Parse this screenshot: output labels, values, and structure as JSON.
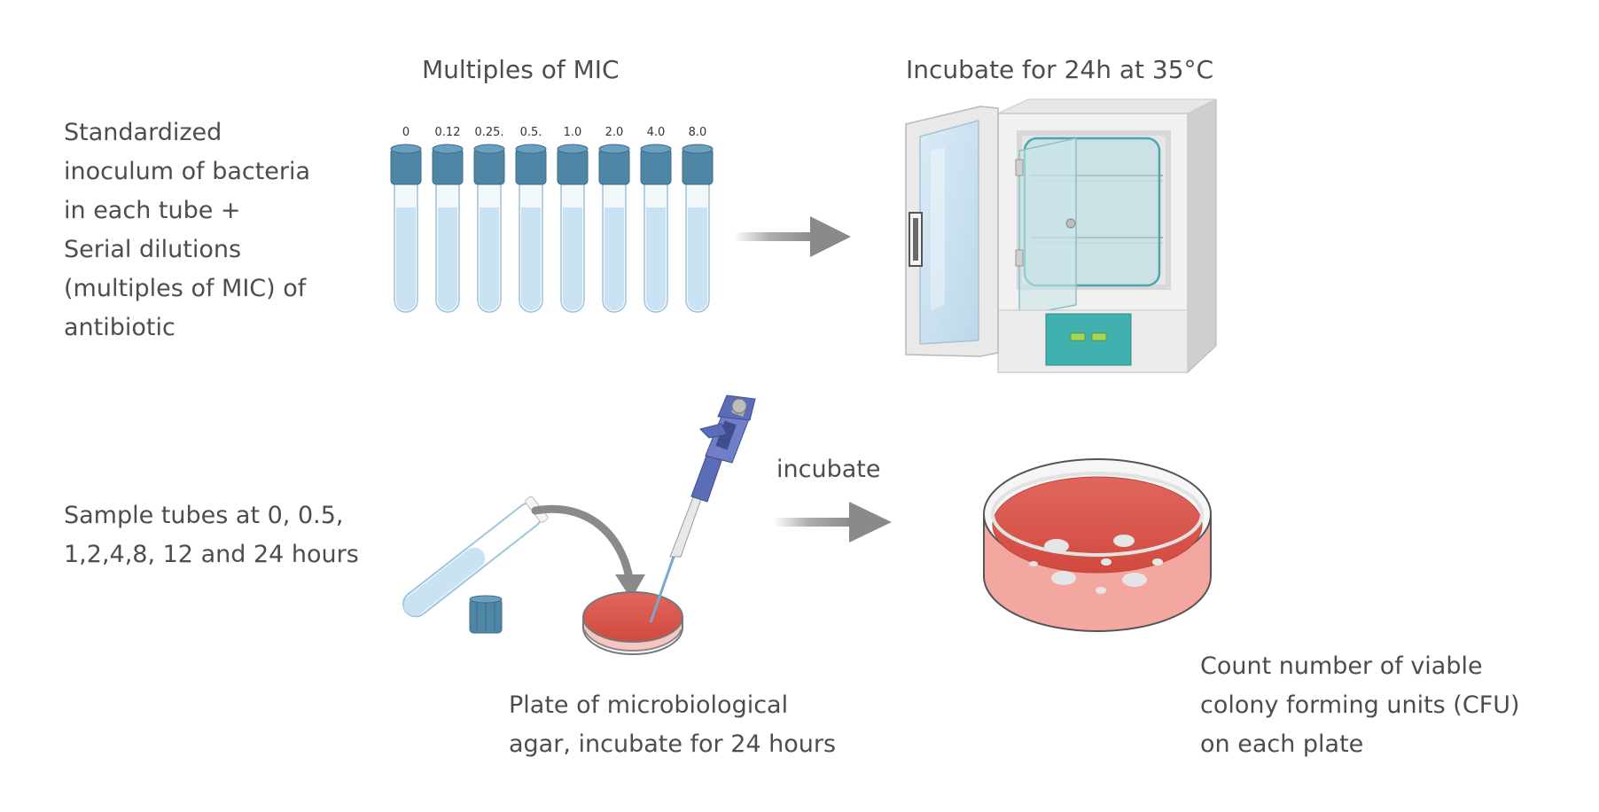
{
  "step1": {
    "title": "Multiples of MIC",
    "description_lines": [
      "Standardized",
      "inoculum of bacteria",
      "in each tube +",
      "Serial dilutions",
      "(multiples of MIC) of",
      "antibiotic"
    ],
    "tube_labels": [
      "0",
      "0.12",
      "0.25.",
      "0.5.",
      "1.0",
      "2.0",
      "4.0",
      "8.0"
    ],
    "tube_cap_color": "#4f86a6",
    "tube_liquid_color": "#c9e3f5"
  },
  "step2": {
    "title": "Incubate for 24h at 35°C",
    "incubator_panel_color": "#3fb0ad"
  },
  "step3": {
    "description_lines": [
      "Sample tubes at 0, 0.5,",
      "1,2,4,8, 12 and 24 hours"
    ],
    "plate_caption_lines": [
      "Plate of microbiological",
      "agar, incubate for 24 hours"
    ],
    "arrow_label": "incubate",
    "pipette_color": "#5b6cb8",
    "agar_color": "#d9544a"
  },
  "step4": {
    "caption_lines": [
      "Count number of viable",
      "colony forming units (CFU)",
      "on each plate"
    ]
  },
  "colors": {
    "arrow": "#8a8a8a",
    "text": "#4d4d4d"
  }
}
